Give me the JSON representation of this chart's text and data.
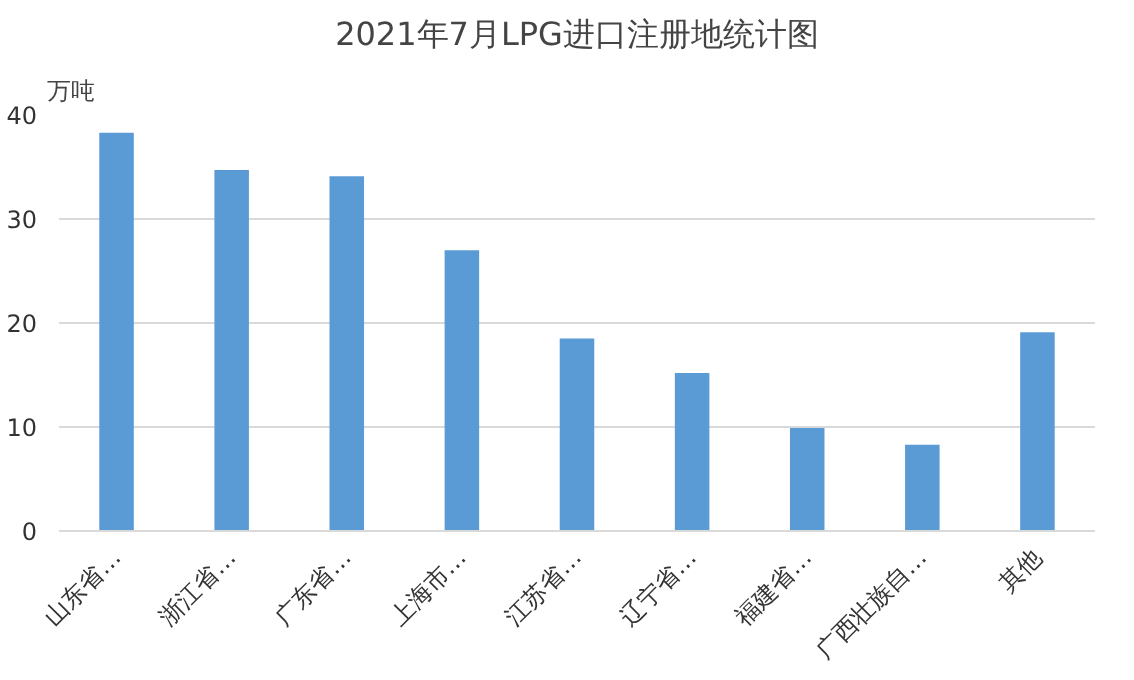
{
  "chart_data": {
    "type": "bar",
    "title": "2021年7月LPG进口注册地统计图",
    "ylabel": "万吨",
    "categories": [
      "山东省…",
      "浙江省…",
      "广东省…",
      "上海市…",
      "江苏省…",
      "辽宁省…",
      "福建省…",
      "广西壮族自…",
      "其他"
    ],
    "values": [
      38.3,
      34.7,
      34.1,
      27.0,
      18.5,
      15.2,
      9.9,
      8.3,
      19.1
    ],
    "color": "#5b9bd5",
    "ylim": [
      0,
      40
    ],
    "yticks": [
      0,
      10,
      20,
      30,
      40
    ],
    "grid": "y"
  }
}
